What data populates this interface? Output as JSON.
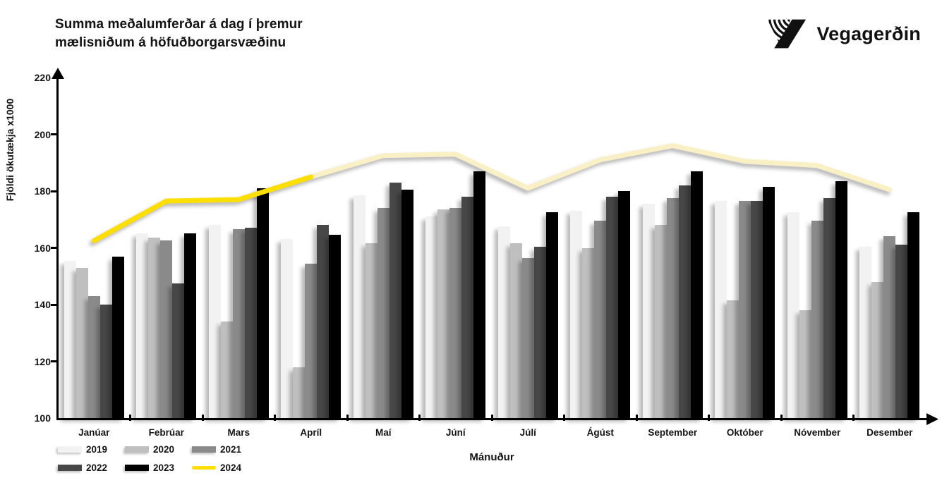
{
  "title": {
    "line1": "Summa meðalumferðar á dag í þremur",
    "line2": "mælisniðum á höfuðborgarsvæðinu"
  },
  "logo": {
    "text": "Vegagerðin"
  },
  "chart_data": {
    "type": "bar",
    "title": "Summa meðalumferðar á dag í þremur mælisniðum á höfuðborgarsvæðinu",
    "xlabel": "Mánuður",
    "ylabel": "Fjöldi ökutækja x1000",
    "ylim": [
      100,
      220
    ],
    "yticks": [
      100,
      120,
      140,
      160,
      180,
      200,
      220
    ],
    "grid": false,
    "legend_position": "bottom-left",
    "categories": [
      "Janúar",
      "Febrúar",
      "Mars",
      "Apríl",
      "Maí",
      "Júní",
      "Júlí",
      "Ágúst",
      "September",
      "Október",
      "Nóvember",
      "Desember"
    ],
    "series": [
      {
        "name": "2019",
        "type": "bar",
        "color": "#f2f2f2",
        "values": [
          155.5,
          165,
          168,
          163,
          178.5,
          171,
          167.5,
          173,
          175.5,
          176.5,
          172.5,
          160.5
        ]
      },
      {
        "name": "2020",
        "type": "bar",
        "color": "#bfbfbf",
        "values": [
          153,
          163.5,
          134,
          118,
          161.5,
          173.5,
          161.5,
          160,
          168,
          141.5,
          138,
          148
        ]
      },
      {
        "name": "2021",
        "type": "bar",
        "color": "#8a8a8a",
        "values": [
          143,
          162.5,
          166.5,
          154.5,
          174,
          174,
          156.5,
          169.5,
          177.5,
          176.5,
          169.5,
          164
        ]
      },
      {
        "name": "2022",
        "type": "bar",
        "color": "#474747",
        "values": [
          140,
          147.5,
          167,
          168,
          183,
          178,
          160.5,
          178,
          182,
          176.5,
          177.5,
          161
        ]
      },
      {
        "name": "2023",
        "type": "bar",
        "color": "#000000",
        "values": [
          157,
          165,
          181,
          164.5,
          180.5,
          187,
          172.5,
          180,
          187,
          181.5,
          183.5,
          172.5
        ]
      },
      {
        "name": "2024",
        "type": "line",
        "color": "#ffdf00",
        "color_projection": "#faf0c6",
        "actual_through_index": 3,
        "values": [
          162.5,
          176.5,
          177,
          185,
          192.5,
          193,
          181,
          191,
          196,
          190.5,
          189,
          180.5
        ]
      }
    ]
  }
}
